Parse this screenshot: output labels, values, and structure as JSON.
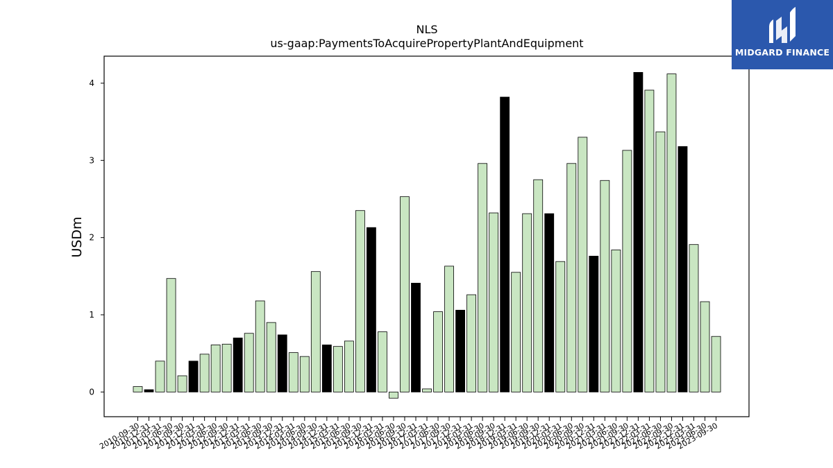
{
  "chart_data": {
    "type": "bar",
    "title": "NLS",
    "subtitle": "us-gaap:PaymentsToAcquirePropertyPlantAndEquipment",
    "ylabel": "USDm",
    "xlabel": "",
    "ylim": [
      -0.32,
      4.35
    ],
    "yticks": [
      0,
      1,
      2,
      3,
      4
    ],
    "grid": false,
    "colors": {
      "light": "#c9e6c2",
      "dark": "#000000",
      "edge": "#000000"
    },
    "categories": [
      "2010-09-30",
      "2010-12-31",
      "2011-03-31",
      "2011-06-30",
      "2011-09-30",
      "2011-12-31",
      "2012-03-31",
      "2012-06-30",
      "2012-09-30",
      "2012-12-31",
      "2013-03-31",
      "2013-06-30",
      "2013-09-30",
      "2013-12-31",
      "2014-03-31",
      "2014-06-30",
      "2014-09-30",
      "2014-12-31",
      "2015-03-31",
      "2015-06-30",
      "2015-09-30",
      "2015-12-31",
      "2016-03-31",
      "2016-06-30",
      "2016-09-30",
      "2016-12-31",
      "2017-03-31",
      "2017-06-30",
      "2017-09-30",
      "2017-12-31",
      "2018-03-31",
      "2018-06-30",
      "2018-09-30",
      "2018-12-31",
      "2019-03-31",
      "2019-06-30",
      "2019-09-30",
      "2019-12-31",
      "2020-03-31",
      "2020-06-30",
      "2020-09-30",
      "2020-12-31",
      "2021-03-31",
      "2021-06-30",
      "2021-09-30",
      "2021-12-31",
      "2022-03-31",
      "2022-06-30",
      "2022-09-30",
      "2022-12-31",
      "2023-03-31",
      "2023-06-30",
      "2023-09-30"
    ],
    "values": [
      0.07,
      0.03,
      0.4,
      1.47,
      0.21,
      0.4,
      0.49,
      0.61,
      0.62,
      0.7,
      0.76,
      1.18,
      0.9,
      0.74,
      0.51,
      0.46,
      1.56,
      0.61,
      0.59,
      0.66,
      2.35,
      2.13,
      0.78,
      -0.08,
      2.53,
      1.41,
      0.04,
      1.04,
      1.63,
      1.06,
      1.26,
      2.96,
      2.32,
      3.82,
      1.55,
      2.31,
      2.75,
      2.31,
      1.69,
      2.96,
      3.3,
      1.76,
      2.74,
      1.84,
      3.13,
      4.14,
      3.91,
      3.37,
      4.12,
      3.18,
      1.91,
      1.17,
      0.72
    ],
    "highlight": [
      false,
      true,
      false,
      false,
      false,
      true,
      false,
      false,
      false,
      true,
      false,
      false,
      false,
      true,
      false,
      false,
      false,
      true,
      false,
      false,
      false,
      true,
      false,
      false,
      false,
      true,
      false,
      false,
      false,
      true,
      false,
      false,
      false,
      true,
      false,
      false,
      false,
      true,
      false,
      false,
      false,
      true,
      false,
      false,
      false,
      true,
      false,
      false,
      false,
      true,
      false,
      false,
      false
    ]
  },
  "logo": {
    "name": "MIDGARD FINANCE",
    "icon": "midgard-logo-icon",
    "color": "#2b58ad"
  }
}
